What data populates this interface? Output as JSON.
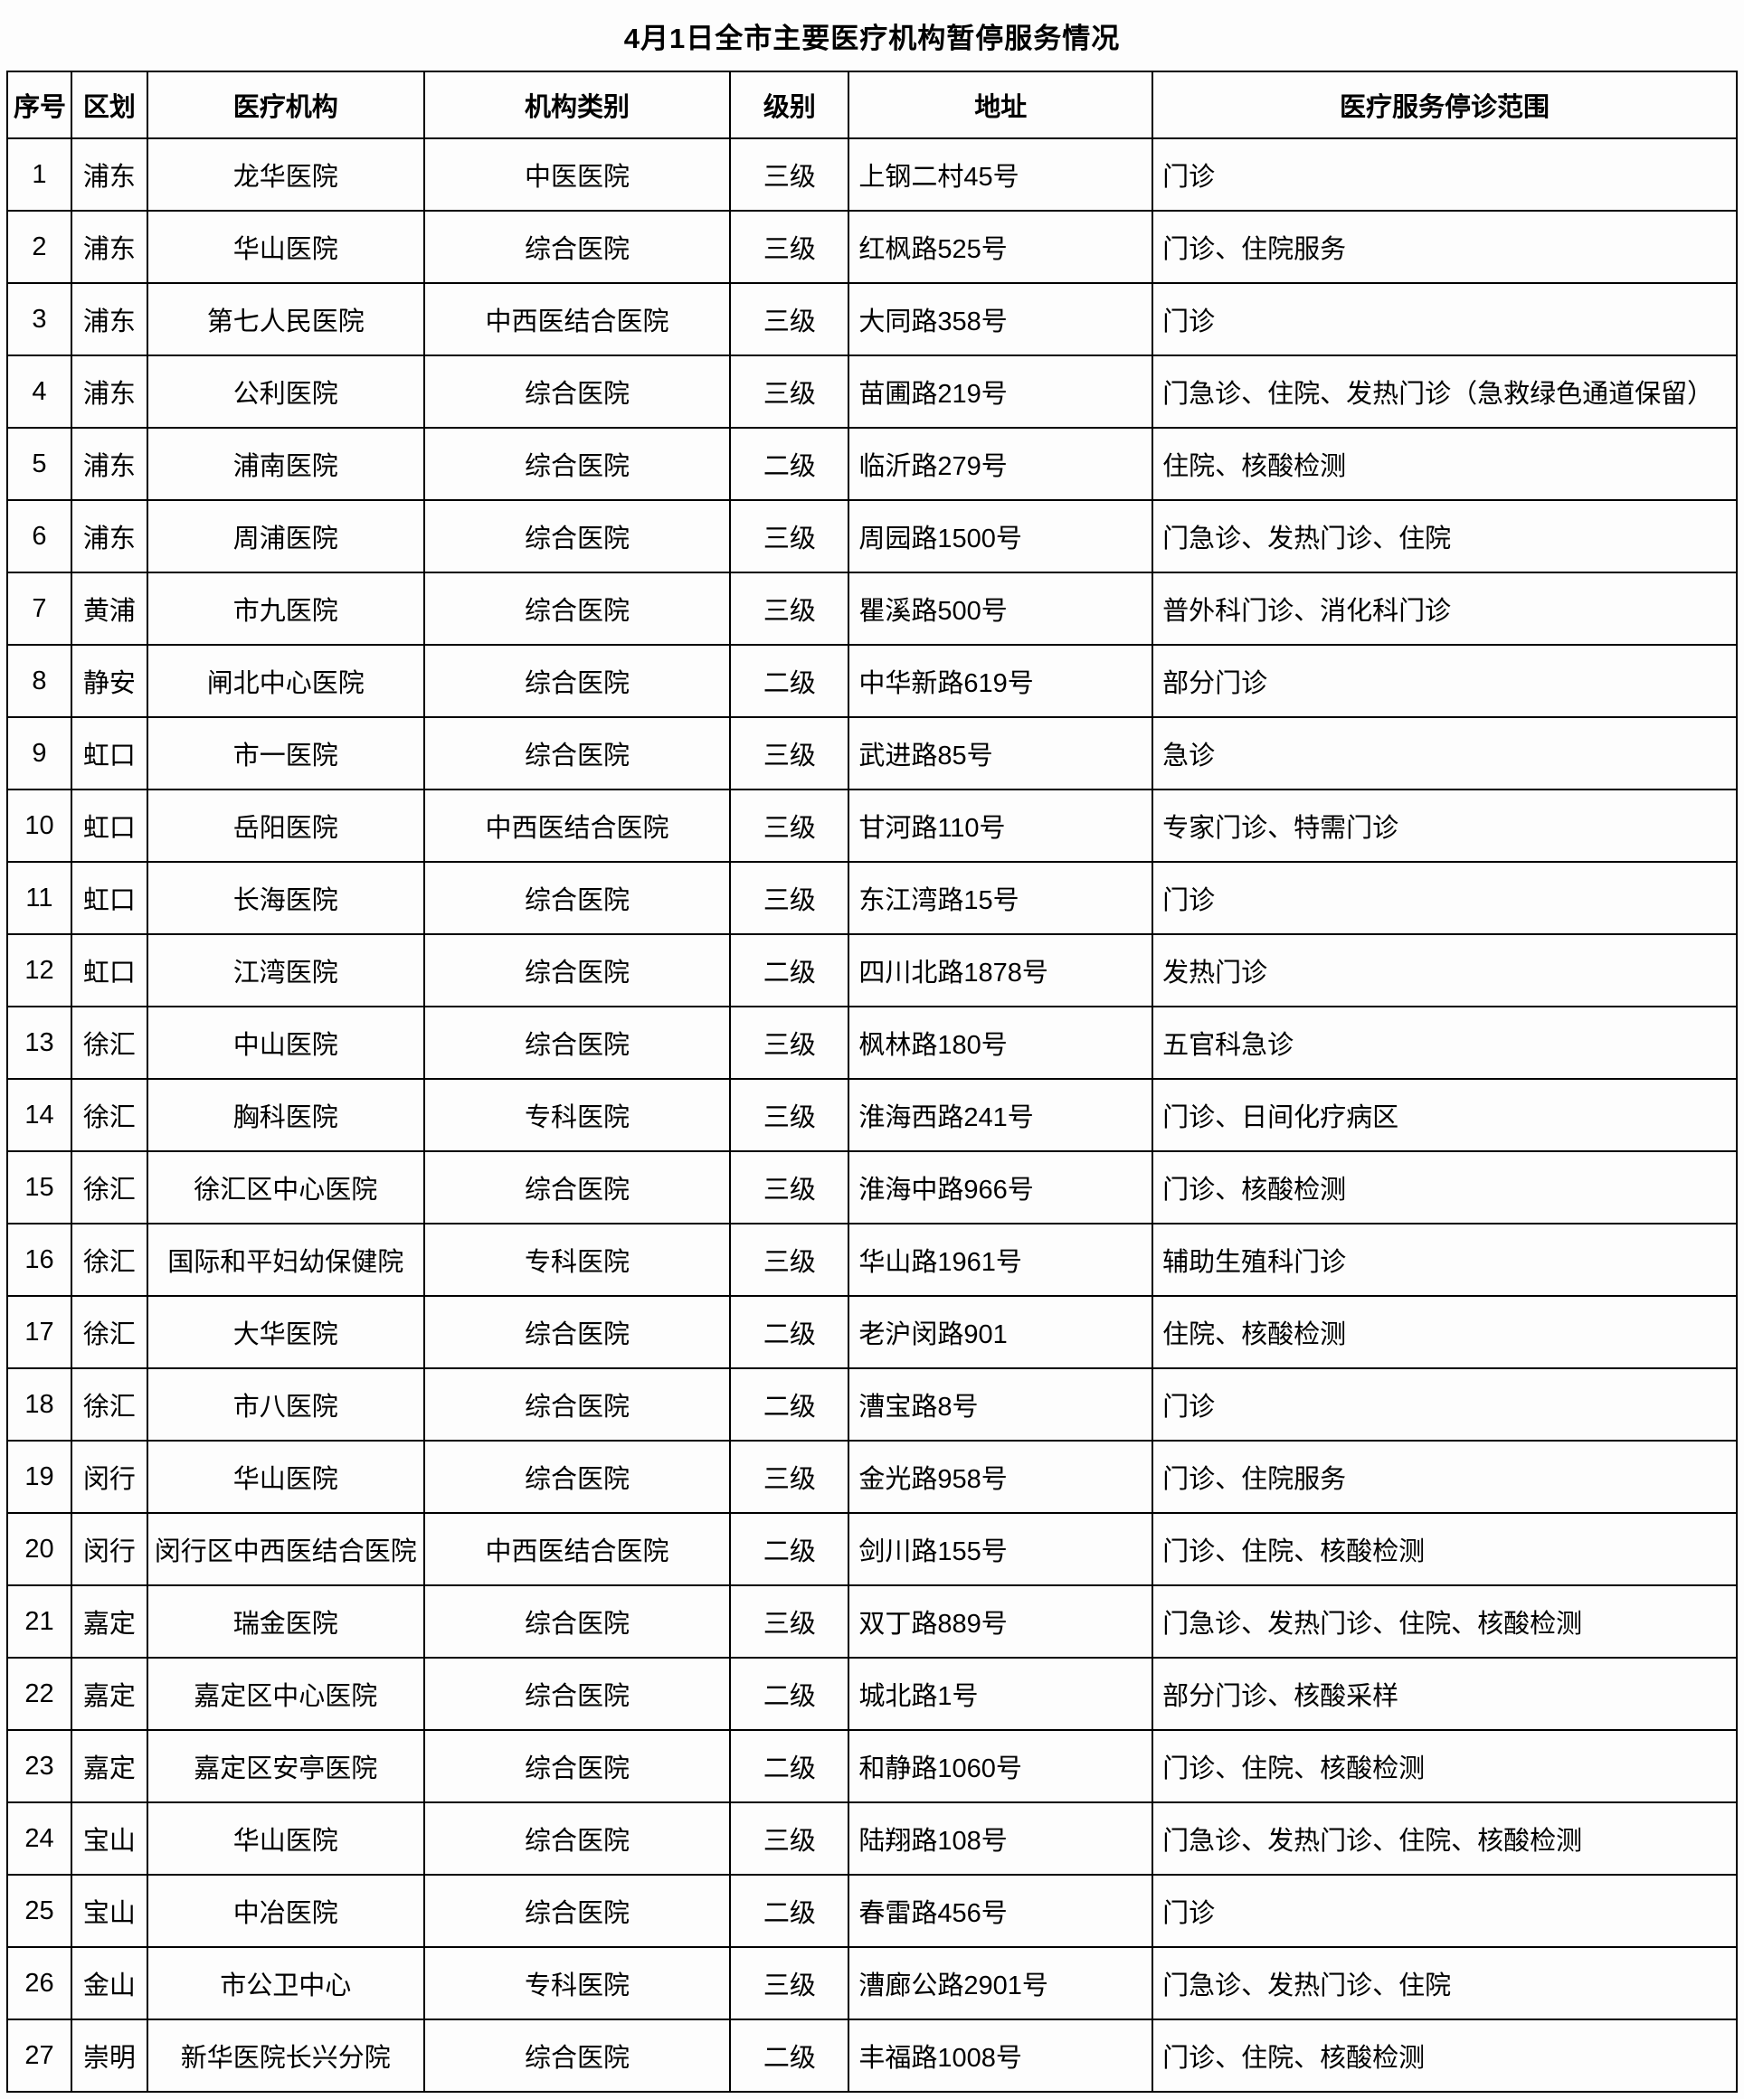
{
  "title": "4月1日全市主要医疗机构暂停服务情况",
  "table": {
    "columns": [
      "序号",
      "区划",
      "医疗机构",
      "机构类别",
      "级别",
      "地址",
      "医疗服务停诊范围"
    ],
    "rows": [
      {
        "no": "1",
        "district": "浦东",
        "name": "龙华医院",
        "category": "中医医院",
        "level": "三级",
        "address": "上钢二村45号",
        "scope": "门诊"
      },
      {
        "no": "2",
        "district": "浦东",
        "name": "华山医院",
        "category": "综合医院",
        "level": "三级",
        "address": "红枫路525号",
        "scope": "门诊、住院服务"
      },
      {
        "no": "3",
        "district": "浦东",
        "name": "第七人民医院",
        "category": "中西医结合医院",
        "level": "三级",
        "address": "大同路358号",
        "scope": "门诊"
      },
      {
        "no": "4",
        "district": "浦东",
        "name": "公利医院",
        "category": "综合医院",
        "level": "三级",
        "address": "苗圃路219号",
        "scope": "门急诊、住院、发热门诊（急救绿色通道保留）"
      },
      {
        "no": "5",
        "district": "浦东",
        "name": "浦南医院",
        "category": "综合医院",
        "level": "二级",
        "address": "临沂路279号",
        "scope": "住院、核酸检测"
      },
      {
        "no": "6",
        "district": "浦东",
        "name": "周浦医院",
        "category": "综合医院",
        "level": "三级",
        "address": "周园路1500号",
        "scope": "门急诊、发热门诊、住院"
      },
      {
        "no": "7",
        "district": "黄浦",
        "name": "市九医院",
        "category": "综合医院",
        "level": "三级",
        "address": "瞿溪路500号",
        "scope": "普外科门诊、消化科门诊"
      },
      {
        "no": "8",
        "district": "静安",
        "name": "闸北中心医院",
        "category": "综合医院",
        "level": "二级",
        "address": "中华新路619号",
        "scope": "部分门诊"
      },
      {
        "no": "9",
        "district": "虹口",
        "name": "市一医院",
        "category": "综合医院",
        "level": "三级",
        "address": "武进路85号",
        "scope": "急诊"
      },
      {
        "no": "10",
        "district": "虹口",
        "name": "岳阳医院",
        "category": "中西医结合医院",
        "level": "三级",
        "address": "甘河路110号",
        "scope": "专家门诊、特需门诊"
      },
      {
        "no": "11",
        "district": "虹口",
        "name": "长海医院",
        "category": "综合医院",
        "level": "三级",
        "address": "东江湾路15号",
        "scope": "门诊"
      },
      {
        "no": "12",
        "district": "虹口",
        "name": "江湾医院",
        "category": "综合医院",
        "level": "二级",
        "address": "四川北路1878号",
        "scope": "发热门诊"
      },
      {
        "no": "13",
        "district": "徐汇",
        "name": "中山医院",
        "category": "综合医院",
        "level": "三级",
        "address": "枫林路180号",
        "scope": "五官科急诊"
      },
      {
        "no": "14",
        "district": "徐汇",
        "name": "胸科医院",
        "category": "专科医院",
        "level": "三级",
        "address": "淮海西路241号",
        "scope": "门诊、日间化疗病区"
      },
      {
        "no": "15",
        "district": "徐汇",
        "name": "徐汇区中心医院",
        "category": "综合医院",
        "level": "三级",
        "address": "淮海中路966号",
        "scope": "门诊、核酸检测"
      },
      {
        "no": "16",
        "district": "徐汇",
        "name": "国际和平妇幼保健院",
        "category": "专科医院",
        "level": "三级",
        "address": "华山路1961号",
        "scope": "辅助生殖科门诊"
      },
      {
        "no": "17",
        "district": "徐汇",
        "name": "大华医院",
        "category": "综合医院",
        "level": "二级",
        "address": "老沪闵路901",
        "scope": "住院、核酸检测"
      },
      {
        "no": "18",
        "district": "徐汇",
        "name": "市八医院",
        "category": "综合医院",
        "level": "二级",
        "address": "漕宝路8号",
        "scope": "门诊"
      },
      {
        "no": "19",
        "district": "闵行",
        "name": "华山医院",
        "category": "综合医院",
        "level": "三级",
        "address": "金光路958号",
        "scope": "门诊、住院服务"
      },
      {
        "no": "20",
        "district": "闵行",
        "name": "闵行区中西医结合医院",
        "category": "中西医结合医院",
        "level": "二级",
        "address": "剑川路155号",
        "scope": "门诊、住院、核酸检测"
      },
      {
        "no": "21",
        "district": "嘉定",
        "name": "瑞金医院",
        "category": "综合医院",
        "level": "三级",
        "address": "双丁路889号",
        "scope": "门急诊、发热门诊、住院、核酸检测"
      },
      {
        "no": "22",
        "district": "嘉定",
        "name": "嘉定区中心医院",
        "category": "综合医院",
        "level": "二级",
        "address": "城北路1号",
        "scope": "部分门诊、核酸采样"
      },
      {
        "no": "23",
        "district": "嘉定",
        "name": "嘉定区安亭医院",
        "category": "综合医院",
        "level": "二级",
        "address": "和静路1060号",
        "scope": "门诊、住院、核酸检测"
      },
      {
        "no": "24",
        "district": "宝山",
        "name": "华山医院",
        "category": "综合医院",
        "level": "三级",
        "address": "陆翔路108号",
        "scope": "门急诊、发热门诊、住院、核酸检测"
      },
      {
        "no": "25",
        "district": "宝山",
        "name": "中冶医院",
        "category": "综合医院",
        "level": "二级",
        "address": "春雷路456号",
        "scope": "门诊"
      },
      {
        "no": "26",
        "district": "金山",
        "name": "市公卫中心",
        "category": "专科医院",
        "level": "三级",
        "address": "漕廊公路2901号",
        "scope": "门急诊、发热门诊、住院"
      },
      {
        "no": "27",
        "district": "崇明",
        "name": "新华医院长兴分院",
        "category": "综合医院",
        "level": "二级",
        "address": "丰福路1008号",
        "scope": "门诊、住院、核酸检测"
      }
    ]
  }
}
